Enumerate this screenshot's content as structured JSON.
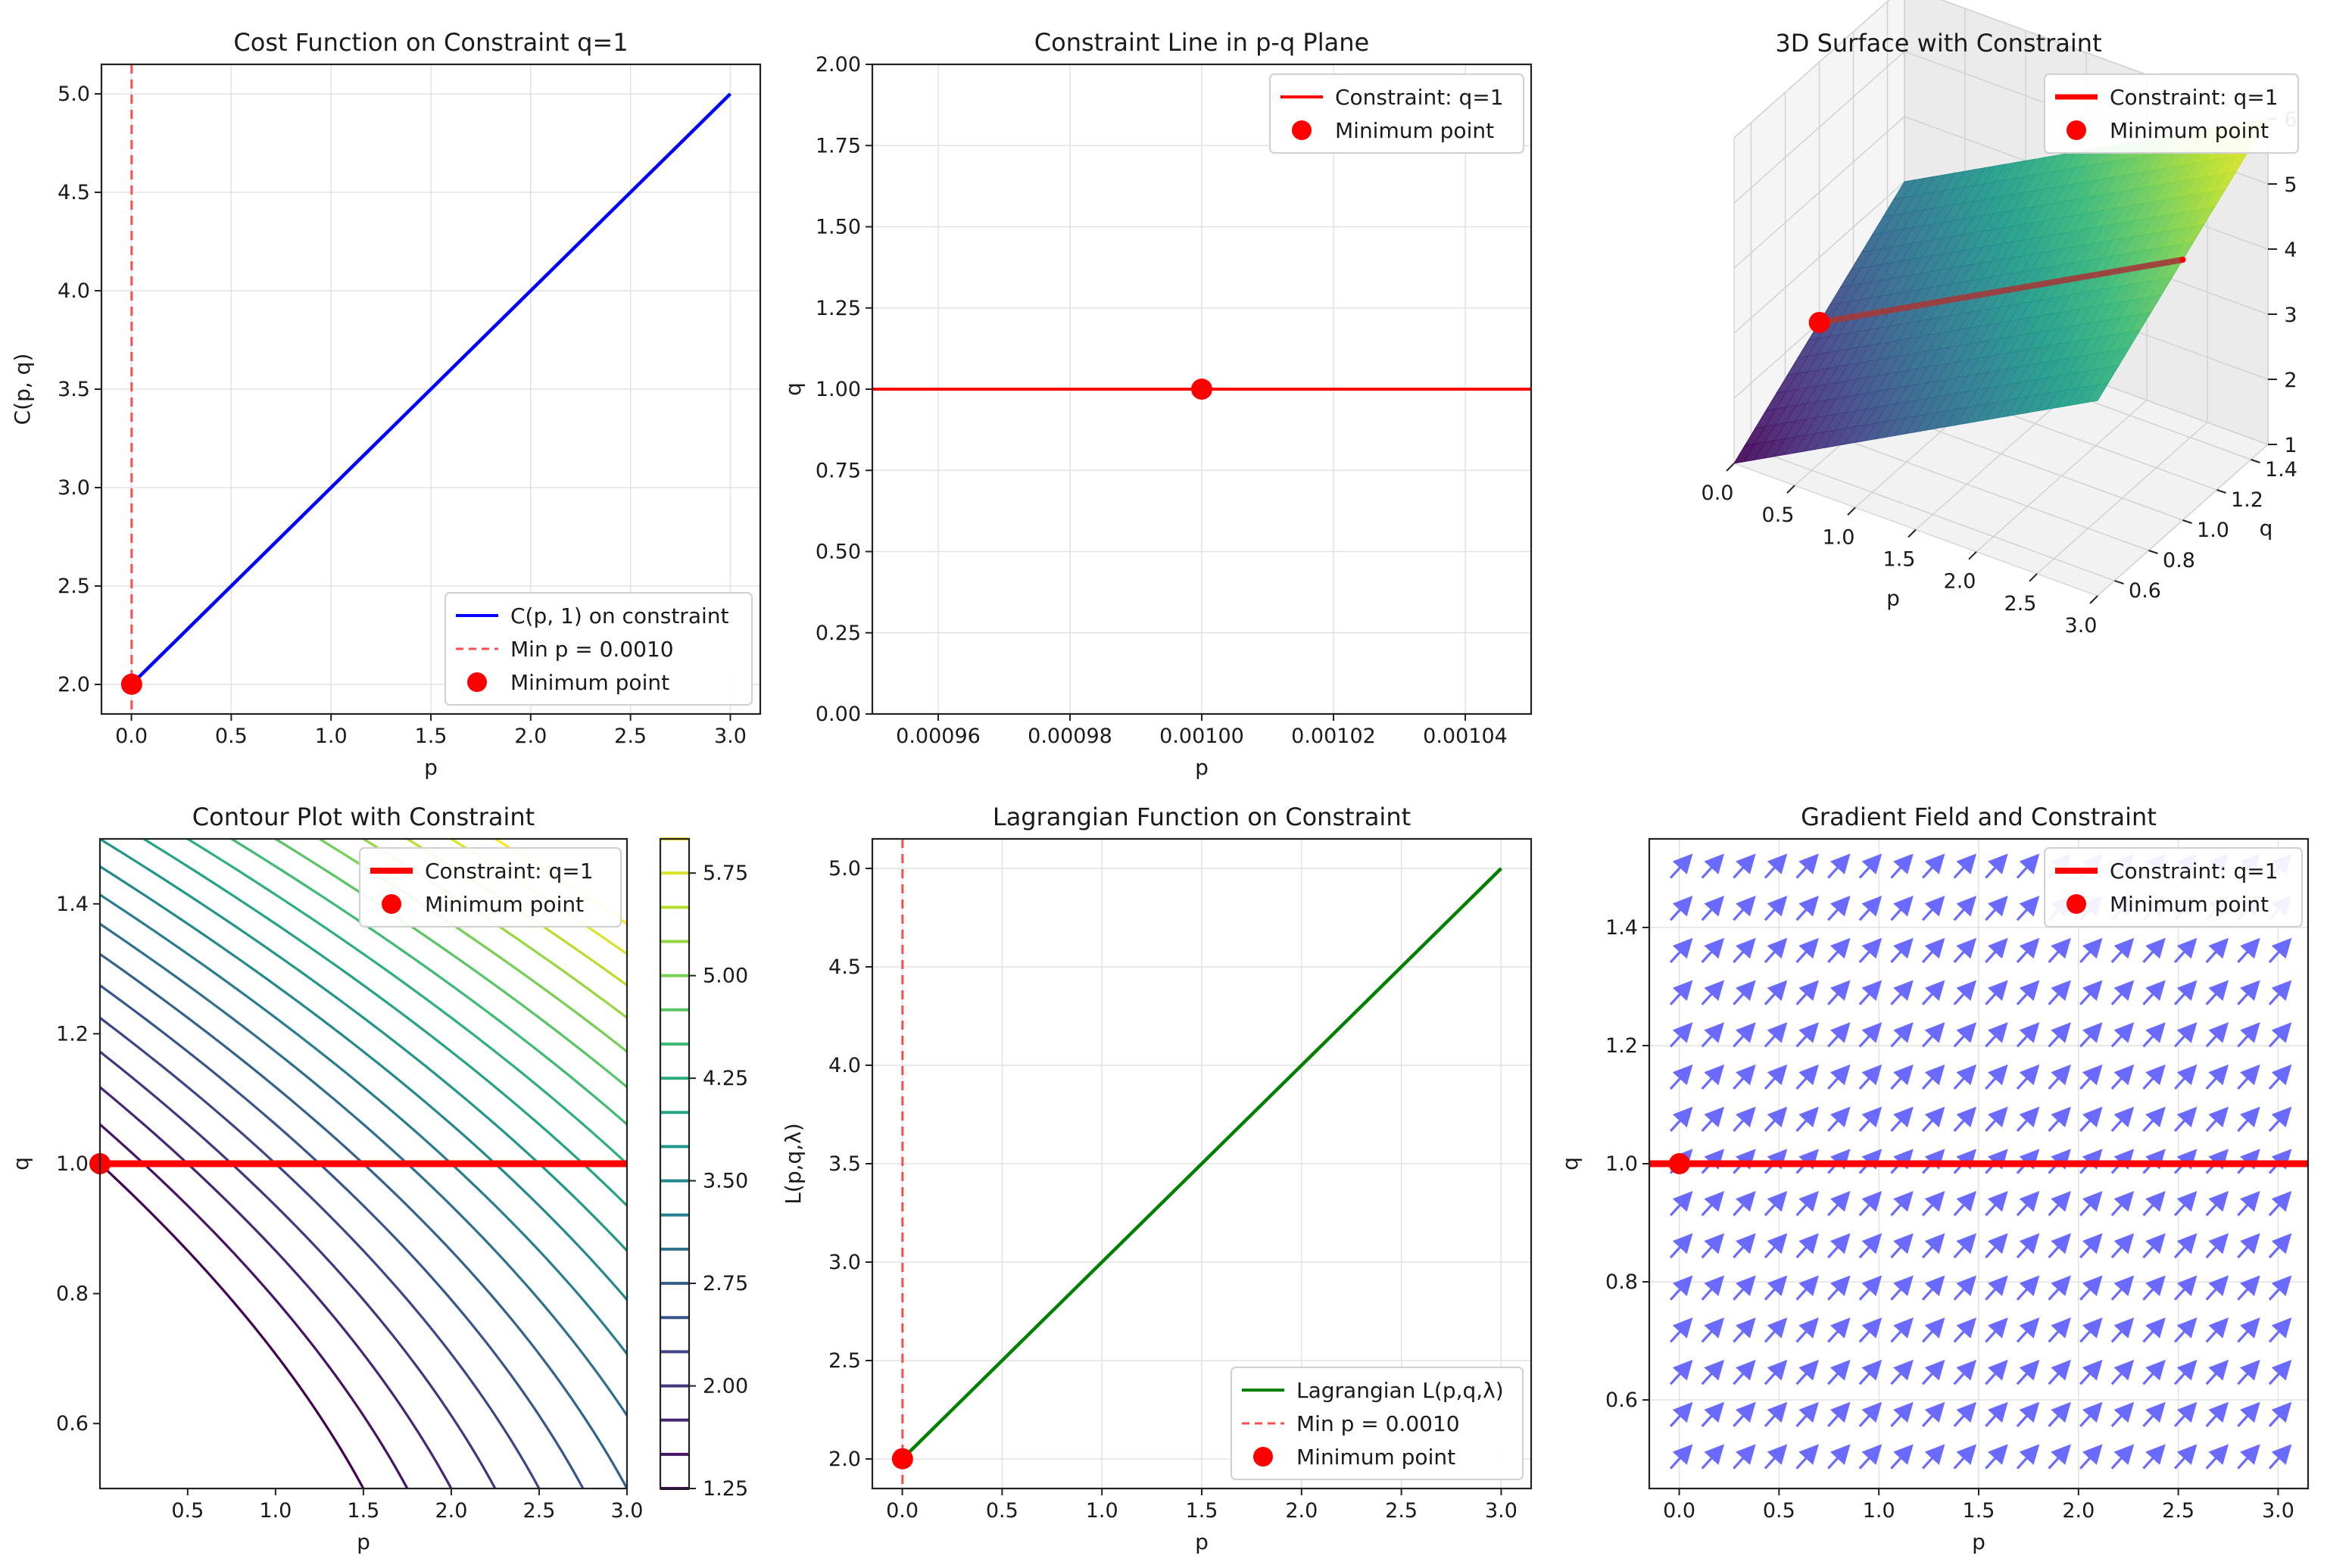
{
  "chart_data": [
    {
      "id": "p1",
      "type": "line",
      "title": "Cost Function on Constraint q=1",
      "xlabel": "p",
      "ylabel": "C(p, q)",
      "xlim": [
        -0.15,
        3.15
      ],
      "ylim": [
        1.85,
        5.15
      ],
      "xticks": [
        0.0,
        0.5,
        1.0,
        1.5,
        2.0,
        2.5,
        3.0
      ],
      "yticks": [
        2.0,
        2.5,
        3.0,
        3.5,
        4.0,
        4.5,
        5.0
      ],
      "xtick_labels": [
        "0.0",
        "0.5",
        "1.0",
        "1.5",
        "2.0",
        "2.5",
        "3.0"
      ],
      "ytick_labels": [
        "2.0",
        "2.5",
        "3.0",
        "3.5",
        "4.0",
        "4.5",
        "5.0"
      ],
      "series": [
        {
          "name": "C(p, 1) on constraint",
          "style": "solid",
          "color": "#0000ff",
          "x": [
            0.001,
            3.0
          ],
          "y": [
            2.001,
            5.0
          ]
        }
      ],
      "vline": {
        "x": 0.001,
        "name": "Min p = 0.0010",
        "color": "#ff4d4d"
      },
      "point": {
        "x": 0.001,
        "y": 2.001,
        "name": "Minimum point",
        "color": "#ff0000"
      },
      "legend_position": "lower-right",
      "grid": true
    },
    {
      "id": "p2",
      "type": "line",
      "title": "Constraint Line in p-q Plane",
      "xlabel": "p",
      "ylabel": "q",
      "xlim": [
        0.00095,
        0.00105
      ],
      "ylim": [
        0.0,
        2.0
      ],
      "xticks": [
        0.00096,
        0.00098,
        0.001,
        0.00102,
        0.00104
      ],
      "yticks": [
        0.0,
        0.25,
        0.5,
        0.75,
        1.0,
        1.25,
        1.5,
        1.75,
        2.0
      ],
      "xtick_labels": [
        "0.00096",
        "0.00098",
        "0.00100",
        "0.00102",
        "0.00104"
      ],
      "ytick_labels": [
        "0.00",
        "0.25",
        "0.50",
        "0.75",
        "1.00",
        "1.25",
        "1.50",
        "1.75",
        "2.00"
      ],
      "series": [
        {
          "name": "Constraint: q=1",
          "style": "solid",
          "color": "#ff0000",
          "x": [
            0.00095,
            0.00105
          ],
          "y": [
            1.0,
            1.0
          ]
        }
      ],
      "point": {
        "x": 0.001,
        "y": 1.0,
        "name": "Minimum point",
        "color": "#ff0000"
      },
      "legend_position": "top-right",
      "grid": true
    },
    {
      "id": "p3",
      "type": "surface3d",
      "title": "3D Surface with Constraint",
      "xlabel": "p",
      "ylabel": "q",
      "zlabel": "",
      "xlim": [
        0.0,
        3.0
      ],
      "ylim": [
        0.5,
        1.5
      ],
      "zlim": [
        1.0,
        6.0
      ],
      "xticks": [
        0.0,
        0.5,
        1.0,
        1.5,
        2.0,
        2.5,
        3.0
      ],
      "yticks": [
        0.6,
        0.8,
        1.0,
        1.2,
        1.4
      ],
      "zticks": [
        1,
        2,
        3,
        4,
        5,
        6
      ],
      "xtick_labels": [
        "0.0",
        "0.5",
        "1.0",
        "1.5",
        "2.0",
        "2.5",
        "3.0"
      ],
      "ytick_labels": [
        "0.6",
        "0.8",
        "1.0",
        "1.2",
        "1.4"
      ],
      "ztick_labels": [
        "1",
        "2",
        "3",
        "4",
        "5",
        "6"
      ],
      "surface": "C(p,q) = p + 2q",
      "constraint_line": {
        "name": "Constraint: q=1",
        "color": "#ff0000",
        "p": [
          0.0,
          3.0
        ],
        "q": 1.0
      },
      "point": {
        "p": 0.001,
        "q": 1.0,
        "z": 2.001,
        "name": "Minimum point",
        "color": "#ff0000"
      },
      "legend_position": "top-right"
    },
    {
      "id": "p4",
      "type": "contour",
      "title": "Contour Plot with Constraint",
      "xlabel": "p",
      "ylabel": "q",
      "xlim": [
        0.001,
        3.0
      ],
      "ylim": [
        0.5,
        1.5
      ],
      "xticks": [
        0.5,
        1.0,
        1.5,
        2.0,
        2.5,
        3.0
      ],
      "yticks": [
        0.6,
        0.8,
        1.0,
        1.2,
        1.4
      ],
      "xtick_labels": [
        "0.5",
        "1.0",
        "1.5",
        "2.0",
        "2.5",
        "3.0"
      ],
      "ytick_labels": [
        "0.6",
        "0.8",
        "1.0",
        "1.2",
        "1.4"
      ],
      "levels": [
        1.25,
        1.5,
        1.75,
        2.0,
        2.25,
        2.5,
        2.75,
        3.0,
        3.25,
        3.5,
        3.75,
        4.0,
        4.25,
        4.5,
        4.75,
        5.0,
        5.25,
        5.5,
        5.75,
        6.0
      ],
      "colorbar_ticks": [
        1.25,
        2.0,
        2.75,
        3.5,
        4.25,
        5.0,
        5.75
      ],
      "colorbar_tick_labels": [
        "1.25",
        "2.00",
        "2.75",
        "3.50",
        "4.25",
        "5.00",
        "5.75"
      ],
      "constraint_line": {
        "name": "Constraint: q=1",
        "color": "#ff0000",
        "q": 1.0
      },
      "point": {
        "x": 0.001,
        "y": 1.0,
        "name": "Minimum point",
        "color": "#ff0000"
      },
      "legend_position": "top-right"
    },
    {
      "id": "p5",
      "type": "line",
      "title": "Lagrangian Function on Constraint",
      "xlabel": "p",
      "ylabel": "L(p,q,λ)",
      "xlim": [
        -0.15,
        3.15
      ],
      "ylim": [
        1.85,
        5.15
      ],
      "xticks": [
        0.0,
        0.5,
        1.0,
        1.5,
        2.0,
        2.5,
        3.0
      ],
      "yticks": [
        2.0,
        2.5,
        3.0,
        3.5,
        4.0,
        4.5,
        5.0
      ],
      "xtick_labels": [
        "0.0",
        "0.5",
        "1.0",
        "1.5",
        "2.0",
        "2.5",
        "3.0"
      ],
      "ytick_labels": [
        "2.0",
        "2.5",
        "3.0",
        "3.5",
        "4.0",
        "4.5",
        "5.0"
      ],
      "series": [
        {
          "name": "Lagrangian L(p,q,λ)",
          "style": "solid",
          "color": "#008000",
          "x": [
            0.001,
            3.0
          ],
          "y": [
            2.001,
            5.0
          ]
        }
      ],
      "vline": {
        "x": 0.001,
        "name": "Min p = 0.0010",
        "color": "#ff4d4d"
      },
      "point": {
        "x": 0.001,
        "y": 2.001,
        "name": "Minimum point",
        "color": "#ff0000"
      },
      "legend_position": "lower-right",
      "grid": true
    },
    {
      "id": "p6",
      "type": "quiver",
      "title": "Gradient Field and Constraint",
      "xlabel": "p",
      "ylabel": "q",
      "xlim": [
        -0.15,
        3.15
      ],
      "ylim": [
        0.45,
        1.55
      ],
      "xticks": [
        0.0,
        0.5,
        1.0,
        1.5,
        2.0,
        2.5,
        3.0
      ],
      "yticks": [
        0.6,
        0.8,
        1.0,
        1.2,
        1.4
      ],
      "xtick_labels": [
        "0.0",
        "0.5",
        "1.0",
        "1.5",
        "2.0",
        "2.5",
        "3.0"
      ],
      "ytick_labels": [
        "0.6",
        "0.8",
        "1.0",
        "1.2",
        "1.4"
      ],
      "gradient": [
        1,
        2
      ],
      "grid_x_count": 20,
      "grid_y_count": 15,
      "arrow_color": "#6a6aff",
      "constraint_line": {
        "name": "Constraint: q=1",
        "color": "#ff0000",
        "q": 1.0
      },
      "point": {
        "x": 0.001,
        "y": 1.0,
        "name": "Minimum point",
        "color": "#ff0000"
      },
      "legend_position": "top-right",
      "grid": true
    }
  ]
}
